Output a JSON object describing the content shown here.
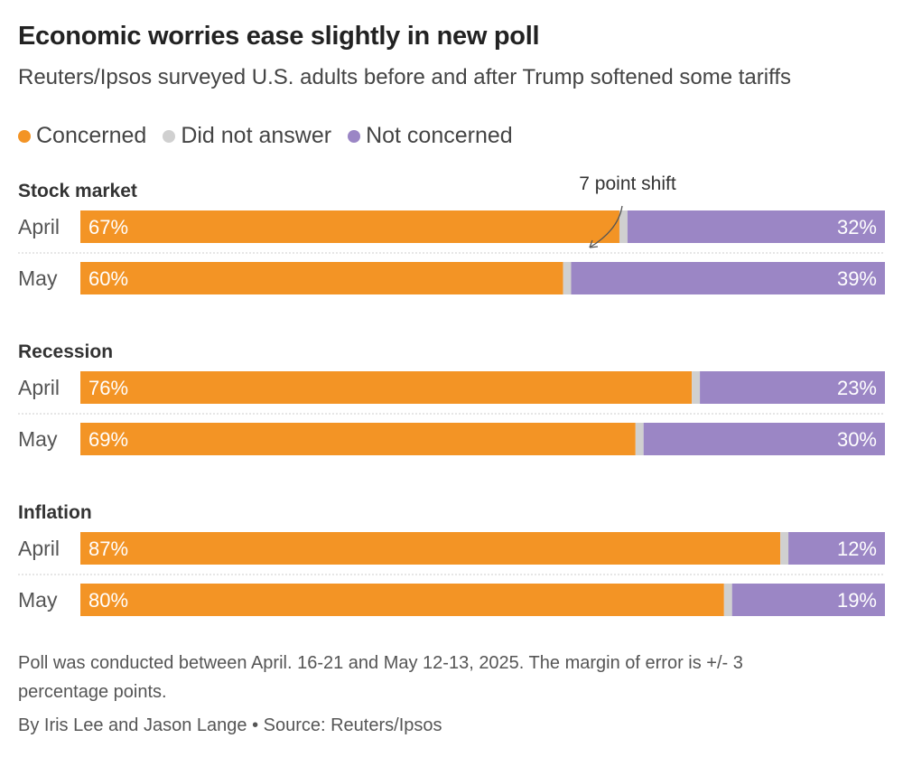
{
  "title": "Economic worries ease slightly in new poll",
  "subtitle": "Reuters/Ipsos surveyed U.S. adults before and after Trump softened some tariffs",
  "legend": [
    {
      "label": "Concerned",
      "color": "#f39425"
    },
    {
      "label": "Did not answer",
      "color": "#d0d0d0"
    },
    {
      "label": "Not concerned",
      "color": "#9b86c5"
    }
  ],
  "annotation": {
    "text": "7 point shift",
    "group": 0
  },
  "chart_data": {
    "type": "bar",
    "stacked": true,
    "orientation": "horizontal",
    "groups": [
      {
        "name": "Stock market",
        "rows": [
          {
            "label": "April",
            "concerned": 67,
            "did_not_answer": 1,
            "not_concerned": 32,
            "concerned_text": "67%",
            "not_concerned_text": "32%"
          },
          {
            "label": "May",
            "concerned": 60,
            "did_not_answer": 1,
            "not_concerned": 39,
            "concerned_text": "60%",
            "not_concerned_text": "39%"
          }
        ]
      },
      {
        "name": "Recession",
        "rows": [
          {
            "label": "April",
            "concerned": 76,
            "did_not_answer": 1,
            "not_concerned": 23,
            "concerned_text": "76%",
            "not_concerned_text": "23%"
          },
          {
            "label": "May",
            "concerned": 69,
            "did_not_answer": 1,
            "not_concerned": 30,
            "concerned_text": "69%",
            "not_concerned_text": "30%"
          }
        ]
      },
      {
        "name": "Inflation",
        "rows": [
          {
            "label": "April",
            "concerned": 87,
            "did_not_answer": 1,
            "not_concerned": 12,
            "concerned_text": "87%",
            "not_concerned_text": "12%"
          },
          {
            "label": "May",
            "concerned": 80,
            "did_not_answer": 1,
            "not_concerned": 19,
            "concerned_text": "80%",
            "not_concerned_text": "19%"
          }
        ]
      }
    ],
    "xlim": [
      0,
      100
    ],
    "grid": false,
    "legend_position": "top-left"
  },
  "footnote": "Poll was conducted between April. 16-21 and May 12-13, 2025. The margin of error is +/- 3 percentage points.",
  "byline": "By Iris Lee and Jason Lange • Source: Reuters/Ipsos"
}
